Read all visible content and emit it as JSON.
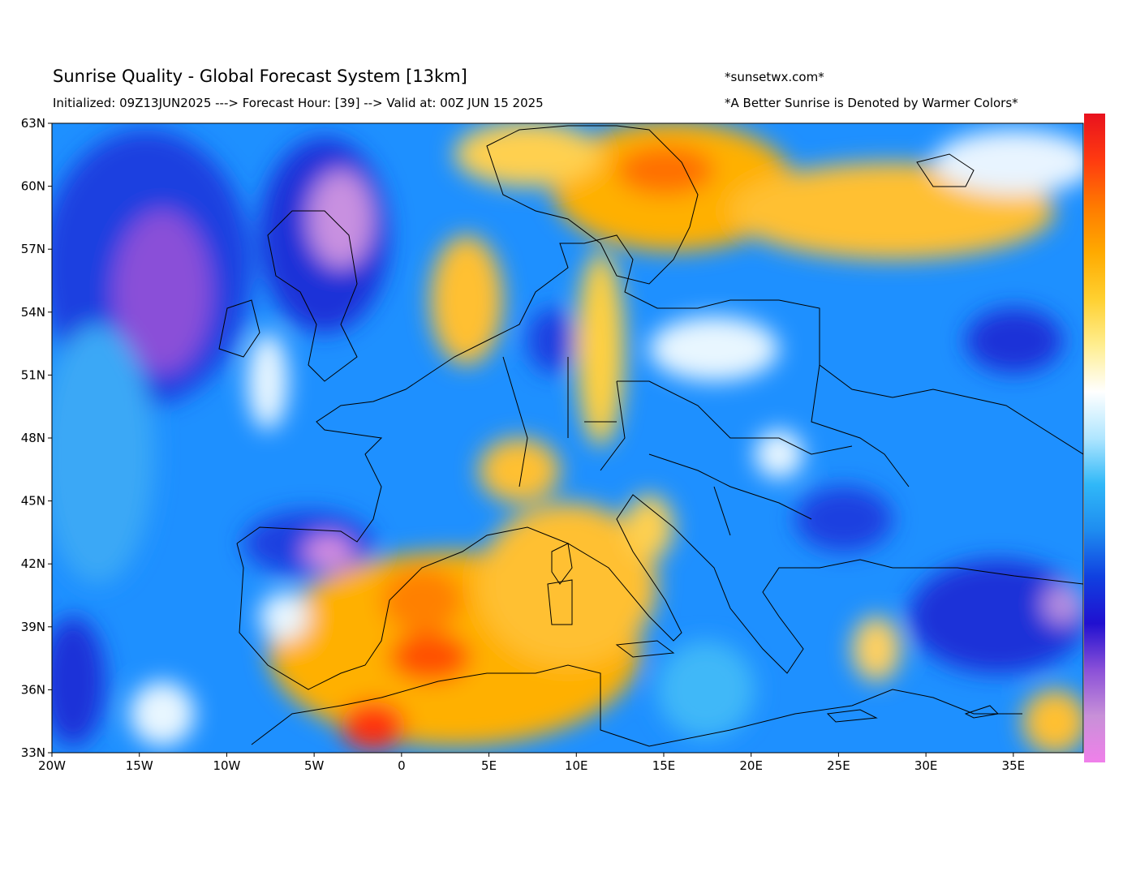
{
  "header": {
    "title": "Sunrise Quality - Global Forecast System [13km]",
    "subtitle": "Initialized: 09Z13JUN2025 ---> Forecast Hour: [39] --> Valid at: 00Z JUN 15 2025",
    "site": "*sunsetwx.com*",
    "note": "*A Better Sunrise is Denoted by Warmer Colors*"
  },
  "map": {
    "lon_range": [
      -20,
      39
    ],
    "lat_range": [
      33,
      63
    ],
    "lat_ticks": [
      {
        "value": 63,
        "label": "63N"
      },
      {
        "value": 60,
        "label": "60N"
      },
      {
        "value": 57,
        "label": "57N"
      },
      {
        "value": 54,
        "label": "54N"
      },
      {
        "value": 51,
        "label": "51N"
      },
      {
        "value": 48,
        "label": "48N"
      },
      {
        "value": 45,
        "label": "45N"
      },
      {
        "value": 42,
        "label": "42N"
      },
      {
        "value": 39,
        "label": "39N"
      },
      {
        "value": 36,
        "label": "36N"
      },
      {
        "value": 33,
        "label": "33N"
      }
    ],
    "lon_ticks": [
      {
        "value": -20,
        "label": "20W"
      },
      {
        "value": -15,
        "label": "15W"
      },
      {
        "value": -10,
        "label": "10W"
      },
      {
        "value": -5,
        "label": "5W"
      },
      {
        "value": 0,
        "label": "0"
      },
      {
        "value": 5,
        "label": "5E"
      },
      {
        "value": 10,
        "label": "10E"
      },
      {
        "value": 15,
        "label": "15E"
      },
      {
        "value": 20,
        "label": "20E"
      },
      {
        "value": 25,
        "label": "25E"
      },
      {
        "value": 30,
        "label": "30E"
      },
      {
        "value": 35,
        "label": "35E"
      }
    ],
    "colors": {
      "ocean_blue": "#1e90ff",
      "deep_blue": "#1530d8",
      "purple": "#9a50e0",
      "pink": "#e890e8",
      "light_blue": "#40b8f8",
      "white": "#fafcff",
      "yellow": "#fff090",
      "orange": "#ffb400",
      "red_orange": "#ff6a00",
      "red": "#ff1a10"
    }
  },
  "colorbar": {
    "colors": [
      "#e8121e",
      "#ff3a10",
      "#ff7a00",
      "#ffaa00",
      "#ffd030",
      "#ffee90",
      "#ffffff",
      "#b0e6ff",
      "#30b8f8",
      "#1e8cf0",
      "#1040e0",
      "#2010d0",
      "#8a50d8",
      "#c890d8",
      "#f080ea"
    ]
  }
}
